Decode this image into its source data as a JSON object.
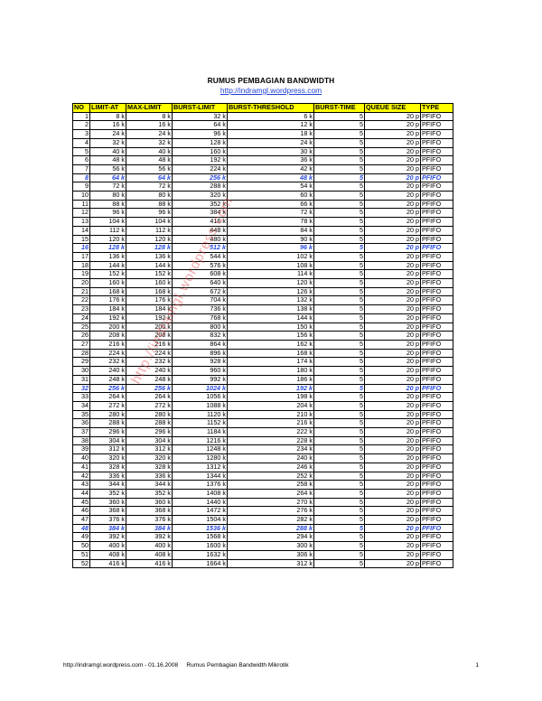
{
  "title": "RUMUS PEMBAGIAN BANDWIDTH",
  "url": "http://indramgl.wordpress.com",
  "watermark": "http://indramgl.wordpress.com",
  "columns": [
    "NO",
    "LIMIT-AT",
    "MAX-LIMIT",
    "BURST-LIMIT",
    "BURST-THRESHOLD",
    "BURST-TIME",
    "QUEUE SIZE",
    "TYPE"
  ],
  "highlight_rows": [
    8,
    16,
    32,
    48
  ],
  "rows": [
    [
      "1",
      "8 k",
      "8 k",
      "32 k",
      "6 k",
      "5",
      "20 p",
      "PFIFO"
    ],
    [
      "2",
      "16 k",
      "16 k",
      "64 k",
      "12 k",
      "5",
      "20 p",
      "PFIFO"
    ],
    [
      "3",
      "24 k",
      "24 k",
      "96 k",
      "18 k",
      "5",
      "20 p",
      "PFIFO"
    ],
    [
      "4",
      "32 k",
      "32 k",
      "128 k",
      "24 k",
      "5",
      "20 p",
      "PFIFO"
    ],
    [
      "5",
      "40 k",
      "40 k",
      "160 k",
      "30 k",
      "5",
      "20 p",
      "PFIFO"
    ],
    [
      "6",
      "48 k",
      "48 k",
      "192 k",
      "36 k",
      "5",
      "20 p",
      "PFIFO"
    ],
    [
      "7",
      "56 k",
      "56 k",
      "224 k",
      "42 k",
      "5",
      "20 p",
      "PFIFO"
    ],
    [
      "8",
      "64 k",
      "64 k",
      "256 k",
      "48 k",
      "5",
      "20 p",
      "PFIFO"
    ],
    [
      "9",
      "72 k",
      "72 k",
      "288 k",
      "54 k",
      "5",
      "20 p",
      "PFIFO"
    ],
    [
      "10",
      "80 k",
      "80 k",
      "320 k",
      "60 k",
      "5",
      "20 p",
      "PFIFO"
    ],
    [
      "11",
      "88 k",
      "88 k",
      "352 k",
      "66 k",
      "5",
      "20 p",
      "PFIFO"
    ],
    [
      "12",
      "96 k",
      "96 k",
      "384 k",
      "72 k",
      "5",
      "20 p",
      "PFIFO"
    ],
    [
      "13",
      "104 k",
      "104 k",
      "416 k",
      "78 k",
      "5",
      "20 p",
      "PFIFO"
    ],
    [
      "14",
      "112 k",
      "112 k",
      "448 k",
      "84 k",
      "5",
      "20 p",
      "PFIFO"
    ],
    [
      "15",
      "120 k",
      "120 k",
      "480 k",
      "90 k",
      "5",
      "20 p",
      "PFIFO"
    ],
    [
      "16",
      "128 k",
      "128 k",
      "512 k",
      "96 k",
      "5",
      "20 p",
      "PFIFO"
    ],
    [
      "17",
      "136 k",
      "136 k",
      "544 k",
      "102 k",
      "5",
      "20 p",
      "PFIFO"
    ],
    [
      "18",
      "144 k",
      "144 k",
      "576 k",
      "108 k",
      "5",
      "20 p",
      "PFIFO"
    ],
    [
      "19",
      "152 k",
      "152 k",
      "608 k",
      "114 k",
      "5",
      "20 p",
      "PFIFO"
    ],
    [
      "20",
      "160 k",
      "160 k",
      "640 k",
      "120 k",
      "5",
      "20 p",
      "PFIFO"
    ],
    [
      "21",
      "168 k",
      "168 k",
      "672 k",
      "126 k",
      "5",
      "20 p",
      "PFIFO"
    ],
    [
      "22",
      "176 k",
      "176 k",
      "704 k",
      "132 k",
      "5",
      "20 p",
      "PFIFO"
    ],
    [
      "23",
      "184 k",
      "184 k",
      "736 k",
      "138 k",
      "5",
      "20 p",
      "PFIFO"
    ],
    [
      "24",
      "192 k",
      "192 k",
      "768 k",
      "144 k",
      "5",
      "20 p",
      "PFIFO"
    ],
    [
      "25",
      "200 k",
      "200 k",
      "800 k",
      "150 k",
      "5",
      "20 p",
      "PFIFO"
    ],
    [
      "26",
      "208 k",
      "208 k",
      "832 k",
      "156 k",
      "5",
      "20 p",
      "PFIFO"
    ],
    [
      "27",
      "216 k",
      "216 k",
      "864 k",
      "162 k",
      "5",
      "20 p",
      "PFIFO"
    ],
    [
      "28",
      "224 k",
      "224 k",
      "896 k",
      "168 k",
      "5",
      "20 p",
      "PFIFO"
    ],
    [
      "29",
      "232 k",
      "232 k",
      "928 k",
      "174 k",
      "5",
      "20 p",
      "PFIFO"
    ],
    [
      "30",
      "240 k",
      "240 k",
      "960 k",
      "180 k",
      "5",
      "20 p",
      "PFIFO"
    ],
    [
      "31",
      "248 k",
      "248 k",
      "992 k",
      "186 k",
      "5",
      "20 p",
      "PFIFO"
    ],
    [
      "32",
      "256 k",
      "256 k",
      "1024 k",
      "192 k",
      "5",
      "20 p",
      "PFIFO"
    ],
    [
      "33",
      "264 k",
      "264 k",
      "1056 k",
      "198 k",
      "5",
      "20 p",
      "PFIFO"
    ],
    [
      "34",
      "272 k",
      "272 k",
      "1088 k",
      "204 k",
      "5",
      "20 p",
      "PFIFO"
    ],
    [
      "35",
      "280 k",
      "280 k",
      "1120 k",
      "210 k",
      "5",
      "20 p",
      "PFIFO"
    ],
    [
      "36",
      "288 k",
      "288 k",
      "1152 k",
      "216 k",
      "5",
      "20 p",
      "PFIFO"
    ],
    [
      "37",
      "296 k",
      "296 k",
      "1184 k",
      "222 k",
      "5",
      "20 p",
      "PFIFO"
    ],
    [
      "38",
      "304 k",
      "304 k",
      "1216 k",
      "228 k",
      "5",
      "20 p",
      "PFIFO"
    ],
    [
      "39",
      "312 k",
      "312 k",
      "1248 k",
      "234 k",
      "5",
      "20 p",
      "PFIFO"
    ],
    [
      "40",
      "320 k",
      "320 k",
      "1280 k",
      "240 k",
      "5",
      "20 p",
      "PFIFO"
    ],
    [
      "41",
      "328 k",
      "328 k",
      "1312 k",
      "246 k",
      "5",
      "20 p",
      "PFIFO"
    ],
    [
      "42",
      "336 k",
      "336 k",
      "1344 k",
      "252 k",
      "5",
      "20 p",
      "PFIFO"
    ],
    [
      "43",
      "344 k",
      "344 k",
      "1376 k",
      "258 k",
      "5",
      "20 p",
      "PFIFO"
    ],
    [
      "44",
      "352 k",
      "352 k",
      "1408 k",
      "264 k",
      "5",
      "20 p",
      "PFIFO"
    ],
    [
      "45",
      "360 k",
      "360 k",
      "1440 k",
      "270 k",
      "5",
      "20 p",
      "PFIFO"
    ],
    [
      "46",
      "368 k",
      "368 k",
      "1472 k",
      "276 k",
      "5",
      "20 p",
      "PFIFO"
    ],
    [
      "47",
      "376 k",
      "376 k",
      "1504 k",
      "282 k",
      "5",
      "20 p",
      "PFIFO"
    ],
    [
      "48",
      "384 k",
      "384 k",
      "1536 k",
      "288 k",
      "5",
      "20 p",
      "PFIFO"
    ],
    [
      "49",
      "392 k",
      "392 k",
      "1568 k",
      "294 k",
      "5",
      "20 p",
      "PFIFO"
    ],
    [
      "50",
      "400 k",
      "400 k",
      "1600 k",
      "300 k",
      "5",
      "20 p",
      "PFIFO"
    ],
    [
      "51",
      "408 k",
      "408 k",
      "1632 k",
      "306 k",
      "5",
      "20 p",
      "PFIFO"
    ],
    [
      "52",
      "416 k",
      "416 k",
      "1664 k",
      "312 k",
      "5",
      "20 p",
      "PFIFO"
    ]
  ],
  "footer": {
    "left": "http://indramgl.wordpress.com - 01.16.2008     Rumus Pembagian Bandwidth Mikrotik",
    "page": "1"
  }
}
